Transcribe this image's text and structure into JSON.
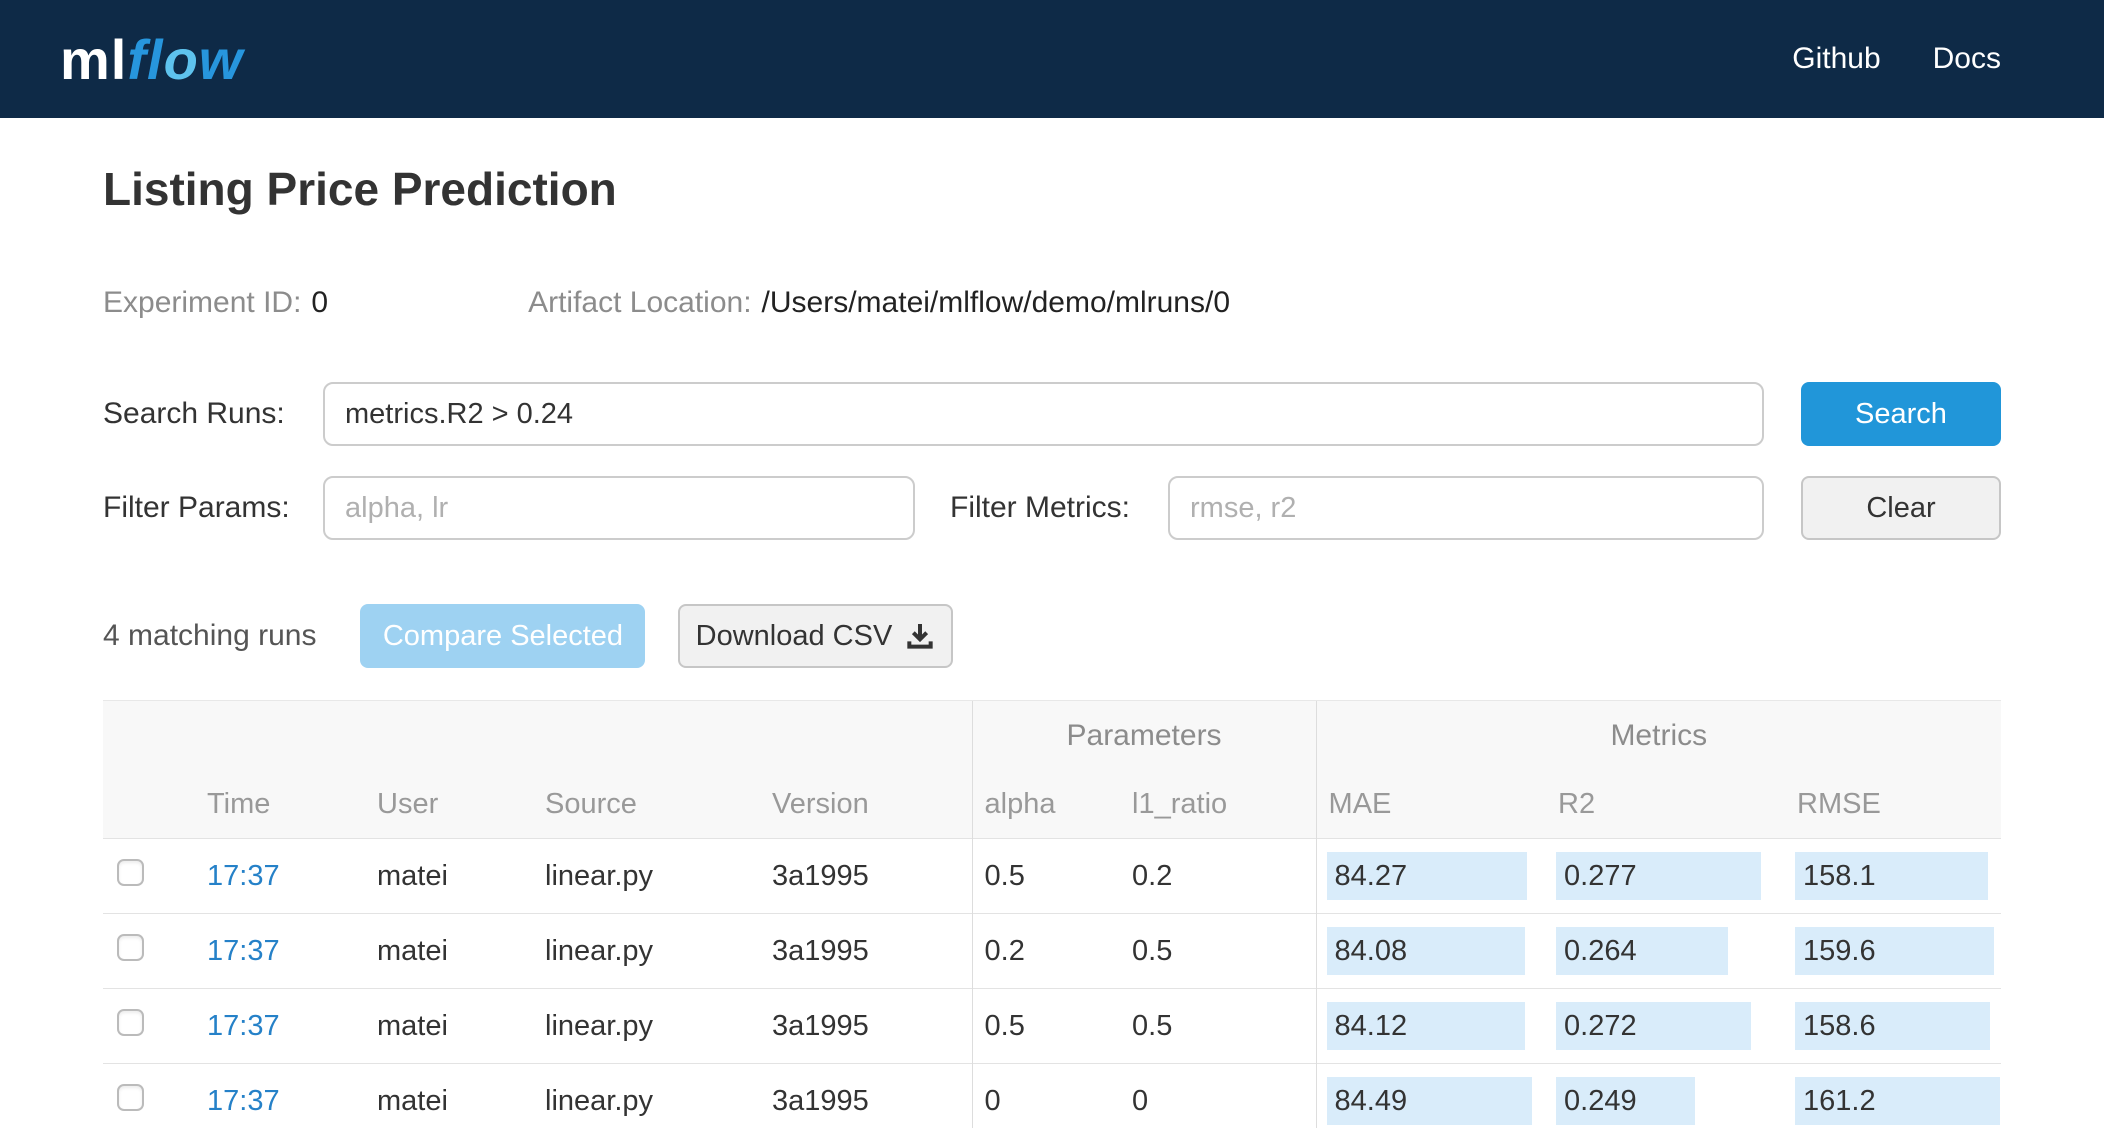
{
  "navbar": {
    "logo_ml": "ml",
    "logo_f": "f",
    "logo_l": "l",
    "logo_o": "o",
    "logo_w": "w",
    "links": [
      {
        "label": "Github"
      },
      {
        "label": "Docs"
      }
    ]
  },
  "header": {
    "title": "Listing Price Prediction",
    "experiment_id_label": "Experiment ID:",
    "experiment_id_value": "0",
    "artifact_location_label": "Artifact Location:",
    "artifact_location_value": "/Users/matei/mlflow/demo/mlruns/0"
  },
  "search": {
    "label": "Search Runs:",
    "value": "metrics.R2 > 0.24",
    "button_label": "Search"
  },
  "filters": {
    "params_label": "Filter Params:",
    "params_placeholder": "alpha, lr",
    "metrics_label": "Filter Metrics:",
    "metrics_placeholder": "rmse, r2",
    "clear_button_label": "Clear"
  },
  "actions": {
    "matching_runs_text": "4 matching runs",
    "compare_button_label": "Compare Selected",
    "download_button_label": "Download CSV",
    "download_icon": "download-icon"
  },
  "table": {
    "groups": {
      "parameters": "Parameters",
      "metrics": "Metrics"
    },
    "columns": [
      "Time",
      "User",
      "Source",
      "Version",
      "alpha",
      "l1_ratio",
      "MAE",
      "R2",
      "RMSE"
    ],
    "rows": [
      {
        "time": "17:37",
        "user": "matei",
        "source": "linear.py",
        "version": "3a1995",
        "alpha": "0.5",
        "l1_ratio": "0.2",
        "mae": "84.27",
        "r2": "0.277",
        "rmse": "158.1",
        "mae_bar": 98,
        "r2_bar": 100,
        "rmse_bar": 94
      },
      {
        "time": "17:37",
        "user": "matei",
        "source": "linear.py",
        "version": "3a1995",
        "alpha": "0.2",
        "l1_ratio": "0.5",
        "mae": "84.08",
        "r2": "0.264",
        "rmse": "159.6",
        "mae_bar": 97,
        "r2_bar": 84,
        "rmse_bar": 97
      },
      {
        "time": "17:37",
        "user": "matei",
        "source": "linear.py",
        "version": "3a1995",
        "alpha": "0.5",
        "l1_ratio": "0.5",
        "mae": "84.12",
        "r2": "0.272",
        "rmse": "158.6",
        "mae_bar": 97,
        "r2_bar": 95,
        "rmse_bar": 95
      },
      {
        "time": "17:37",
        "user": "matei",
        "source": "linear.py",
        "version": "3a1995",
        "alpha": "0",
        "l1_ratio": "0",
        "mae": "84.49",
        "r2": "0.249",
        "rmse": "161.2",
        "mae_bar": 100,
        "r2_bar": 68,
        "rmse_bar": 100
      }
    ]
  },
  "colors": {
    "navbar_bg": "#0e2a47",
    "logo_flow_blue": "#2796dd",
    "logo_o_blue": "#5ec3ee",
    "primary_button_blue": "#2196d9",
    "compare_button_blue": "#9ed2f2",
    "link_blue": "#2581c8",
    "metric_bar_blue": "#d9ecfa"
  }
}
